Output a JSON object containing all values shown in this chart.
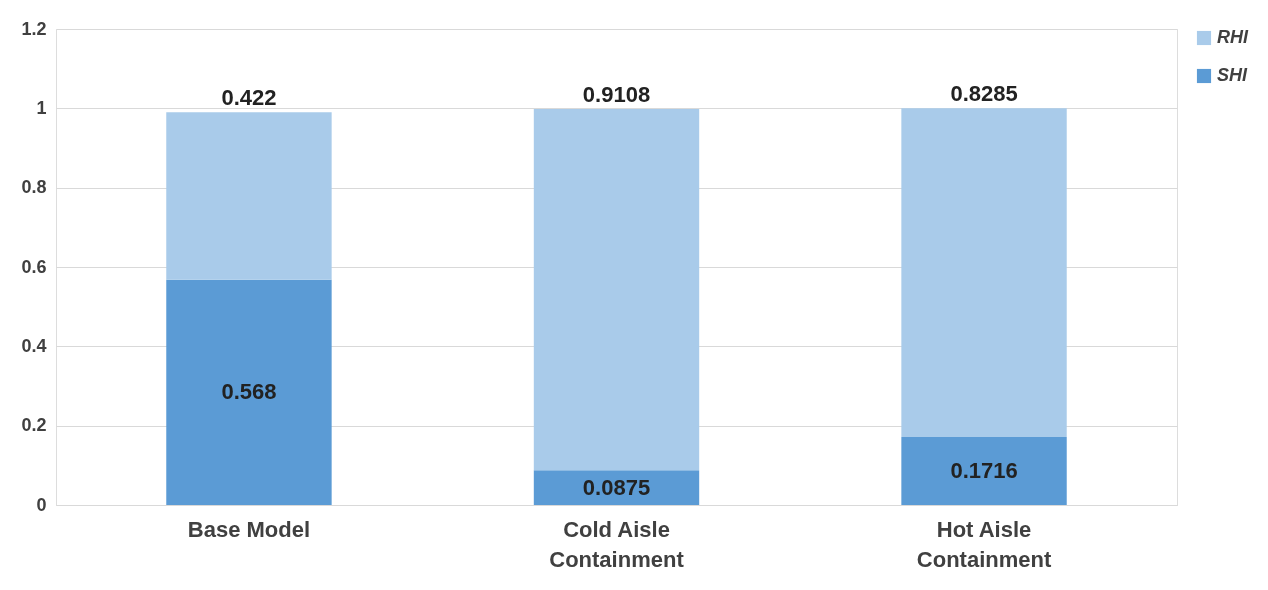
{
  "chart_data": {
    "type": "bar",
    "stacked": true,
    "categories": [
      "Base Model",
      "Cold Aisle Containment",
      "Hot Aisle Containment"
    ],
    "series": [
      {
        "name": "SHI",
        "color": "#5b9bd5",
        "values": [
          0.568,
          0.0875,
          0.1716
        ]
      },
      {
        "name": "RHI",
        "color": "#a9cbea",
        "values": [
          0.422,
          0.9108,
          0.8285
        ]
      }
    ],
    "ylim": [
      0,
      1.2
    ],
    "yticks": [
      0,
      0.2,
      0.4,
      0.6,
      0.8,
      1,
      1.2
    ],
    "grid": "y",
    "legend": "right",
    "data_labels": true
  }
}
